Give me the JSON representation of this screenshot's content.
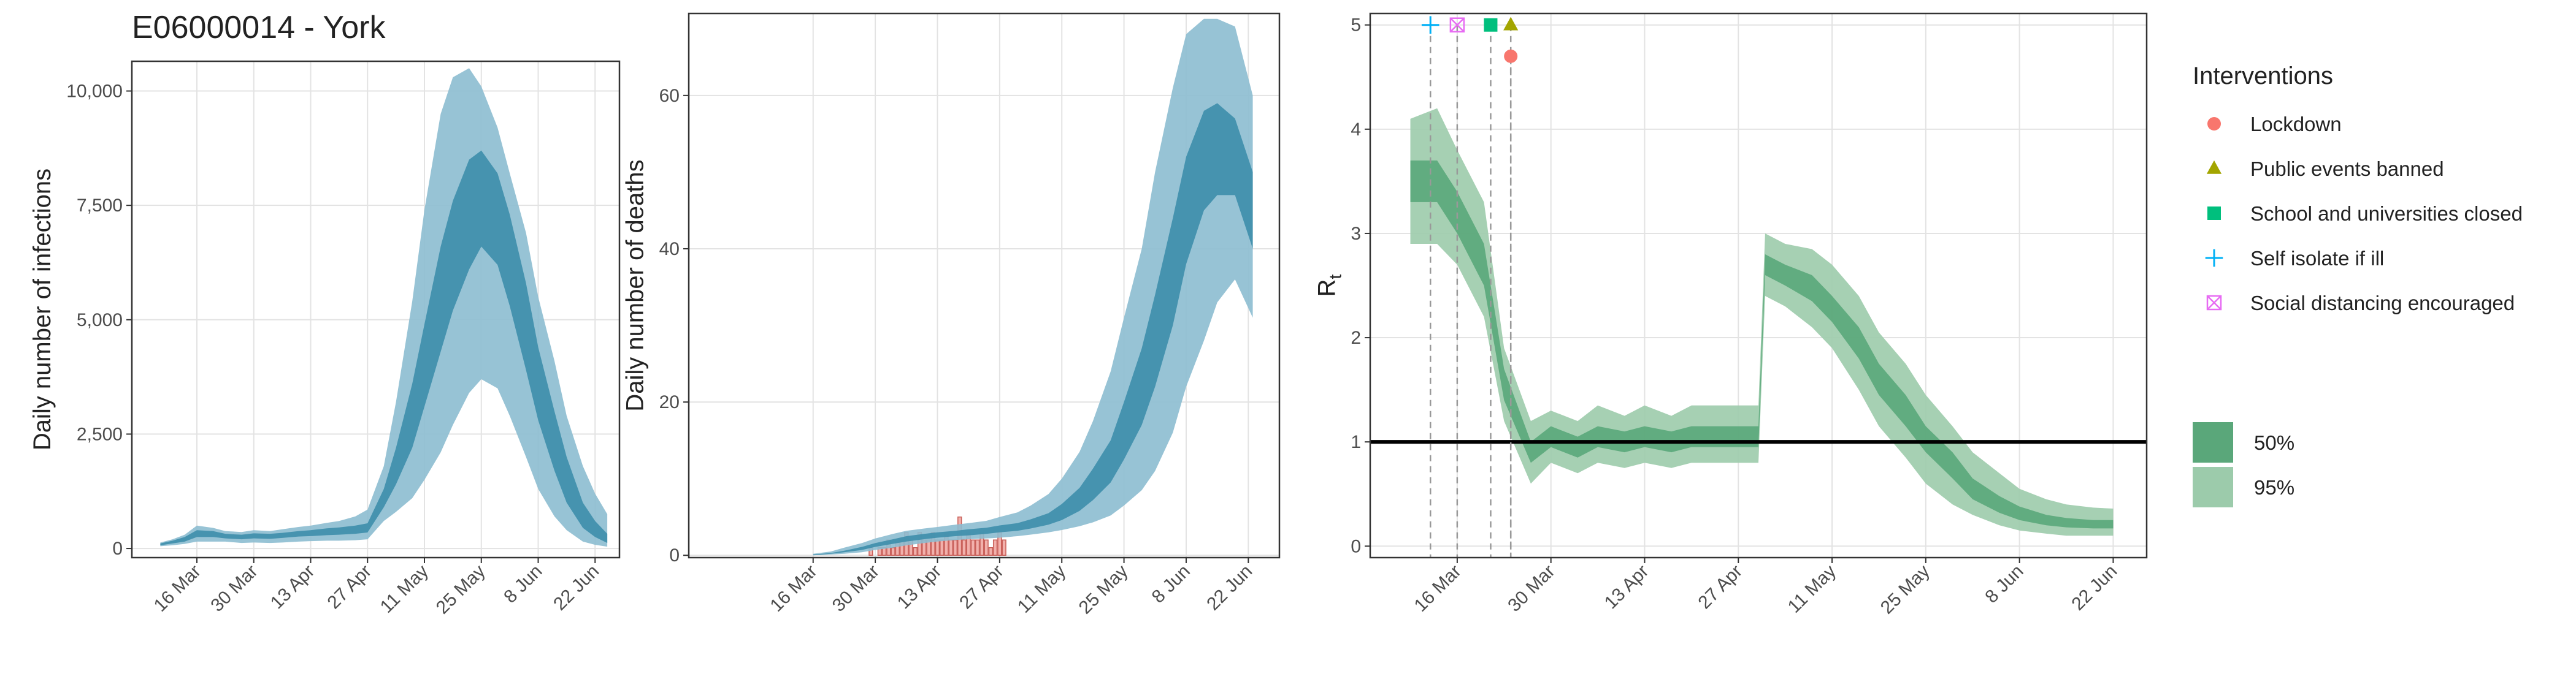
{
  "chart_data": [
    {
      "type": "area",
      "title": "E06000014 - York",
      "ylabel": "Daily number of infections",
      "grid": true,
      "x": [
        "7 Mar",
        "10 Mar",
        "13 Mar",
        "16 Mar",
        "20 Mar",
        "23 Mar",
        "27 Mar",
        "30 Mar",
        "3 Apr",
        "6 Apr",
        "10 Apr",
        "13 Apr",
        "17 Apr",
        "20 Apr",
        "24 Apr",
        "27 Apr",
        "1 May",
        "4 May",
        "8 May",
        "11 May",
        "15 May",
        "18 May",
        "22 May",
        "25 May",
        "29 May",
        "1 Jun",
        "5 Jun",
        "8 Jun",
        "12 Jun",
        "15 Jun",
        "19 Jun",
        "22 Jun",
        "25 Jun"
      ],
      "xlim": [
        "29 Feb",
        "28 Jun"
      ],
      "xticks": [
        "16 Mar",
        "30 Mar",
        "13 Apr",
        "27 Apr",
        "11 May",
        "25 May",
        "8 Jun",
        "22 Jun"
      ],
      "ylim": [
        -200,
        10650
      ],
      "yticks": [
        0,
        {
          "value": 2500,
          "label": "2,500"
        },
        {
          "value": 5000,
          "label": "5,000"
        },
        {
          "value": 7500,
          "label": "7,500"
        },
        {
          "value": 10000,
          "label": "10,000"
        }
      ],
      "series": [
        {
          "color": "#8cbdd0",
          "lower": [
            50,
            70,
            100,
            150,
            150,
            150,
            120,
            130,
            120,
            130,
            150,
            160,
            170,
            170,
            180,
            200,
            600,
            800,
            1100,
            1500,
            2100,
            2700,
            3400,
            3700,
            3500,
            2900,
            2000,
            1300,
            700,
            400,
            150,
            80,
            40
          ],
          "upper": [
            130,
            200,
            300,
            500,
            450,
            380,
            360,
            400,
            380,
            420,
            470,
            500,
            560,
            600,
            700,
            850,
            1800,
            3200,
            5400,
            7400,
            9500,
            10300,
            10500,
            10100,
            9200,
            8200,
            6900,
            5500,
            4100,
            2900,
            1800,
            1200,
            750
          ]
        },
        {
          "color": "#3d8eab",
          "lower": [
            70,
            110,
            150,
            250,
            250,
            220,
            200,
            220,
            210,
            230,
            260,
            270,
            290,
            300,
            320,
            350,
            900,
            1400,
            2200,
            3100,
            4300,
            5200,
            6100,
            6600,
            6200,
            5300,
            3900,
            2800,
            1700,
            1000,
            450,
            250,
            120
          ],
          "upper": [
            110,
            170,
            250,
            400,
            380,
            320,
            300,
            330,
            320,
            340,
            380,
            400,
            440,
            460,
            500,
            550,
            1300,
            2200,
            3600,
            4900,
            6600,
            7600,
            8500,
            8700,
            8200,
            7300,
            5800,
            4400,
            3000,
            2000,
            1000,
            600,
            320
          ]
        }
      ]
    },
    {
      "type": "area",
      "ylabel": "Daily number of deaths",
      "grid": true,
      "x": [
        "16 Mar",
        "20 Mar",
        "23 Mar",
        "27 Mar",
        "30 Mar",
        "3 Apr",
        "6 Apr",
        "10 Apr",
        "13 Apr",
        "17 Apr",
        "20 Apr",
        "24 Apr",
        "27 Apr",
        "1 May",
        "4 May",
        "8 May",
        "11 May",
        "15 May",
        "18 May",
        "22 May",
        "25 May",
        "29 May",
        "1 Jun",
        "5 Jun",
        "8 Jun",
        "12 Jun",
        "15 Jun",
        "19 Jun",
        "23 Jun"
      ],
      "xlim": [
        "17 Feb",
        "29 Jun"
      ],
      "xticks": [
        "16 Mar",
        "30 Mar",
        "13 Apr",
        "27 Apr",
        "11 May",
        "25 May",
        "8 Jun",
        "22 Jun"
      ],
      "ylim": [
        -0.3,
        70.7
      ],
      "yticks": [
        0,
        20,
        40,
        60
      ],
      "bars": {
        "color": "#f2b1ac",
        "edge": "#c9605a",
        "x": [
          "29 Mar",
          "30 Mar",
          "31 Mar",
          "1 Apr",
          "2 Apr",
          "3 Apr",
          "4 Apr",
          "5 Apr",
          "6 Apr",
          "7 Apr",
          "8 Apr",
          "9 Apr",
          "10 Apr",
          "11 Apr",
          "12 Apr",
          "13 Apr",
          "14 Apr",
          "15 Apr",
          "16 Apr",
          "17 Apr",
          "18 Apr",
          "19 Apr",
          "20 Apr",
          "21 Apr",
          "22 Apr",
          "23 Apr",
          "24 Apr",
          "25 Apr",
          "26 Apr",
          "27 Apr",
          "28 Apr"
        ],
        "values": [
          1,
          0,
          1,
          1,
          2,
          1,
          2,
          2,
          3,
          2,
          1,
          3,
          2,
          2,
          3,
          2,
          2,
          3,
          2,
          2,
          5,
          2,
          3,
          2,
          2,
          3,
          2,
          1,
          2,
          3,
          2
        ]
      },
      "series": [
        {
          "color": "#8cbdd0",
          "lower": [
            0,
            0.1,
            0.2,
            0.4,
            0.7,
            1.0,
            1.3,
            1.6,
            1.8,
            2.0,
            2.1,
            2.2,
            2.3,
            2.5,
            2.7,
            3.0,
            3.3,
            3.8,
            4.3,
            5.2,
            6.5,
            8.5,
            11,
            16,
            22,
            28,
            33,
            36,
            31
          ],
          "upper": [
            0.2,
            0.5,
            1,
            1.6,
            2.2,
            2.8,
            3.2,
            3.5,
            3.7,
            4.0,
            4.2,
            4.5,
            5.0,
            5.6,
            6.5,
            8,
            10,
            13.5,
            17.5,
            24,
            31,
            40,
            50,
            61,
            68,
            70,
            70,
            69,
            60
          ]
        },
        {
          "color": "#3d8eab",
          "lower": [
            0,
            0.2,
            0.4,
            0.7,
            1.1,
            1.5,
            1.8,
            2.1,
            2.3,
            2.5,
            2.6,
            2.8,
            3.0,
            3.2,
            3.5,
            4.0,
            4.6,
            5.8,
            7.2,
            9.5,
            12.5,
            17,
            22,
            30,
            38,
            45,
            47,
            47,
            40
          ],
          "upper": [
            0.1,
            0.3,
            0.6,
            1.1,
            1.6,
            2.1,
            2.5,
            2.8,
            3.0,
            3.2,
            3.4,
            3.6,
            3.9,
            4.2,
            4.7,
            5.5,
            6.7,
            8.8,
            11.3,
            15,
            20,
            27,
            34,
            44,
            52,
            58,
            59,
            57,
            50
          ]
        }
      ]
    },
    {
      "type": "area",
      "ylabel": "R",
      "ylabel_subscript": "t",
      "grid": true,
      "reference_line": 1,
      "x": [
        "9 Mar",
        "13 Mar",
        "16 Mar",
        "20 Mar",
        "23 Mar",
        "27 Mar",
        "30 Mar",
        "3 Apr",
        "6 Apr",
        "10 Apr",
        "13 Apr",
        "17 Apr",
        "20 Apr",
        "24 Apr",
        "27 Apr",
        "30 Apr",
        "1 May",
        "4 May",
        "8 May",
        "11 May",
        "15 May",
        "18 May",
        "22 May",
        "25 May",
        "29 May",
        "1 Jun",
        "5 Jun",
        "8 Jun",
        "12 Jun",
        "15 Jun",
        "19 Jun",
        "22 Jun"
      ],
      "xlim": [
        "3 Mar",
        "27 Jun"
      ],
      "xticks": [
        "16 Mar",
        "30 Mar",
        "13 Apr",
        "27 Apr",
        "11 May",
        "25 May",
        "8 Jun",
        "22 Jun"
      ],
      "ylim": [
        -0.11,
        5.11
      ],
      "yticks": [
        0,
        1,
        2,
        3,
        4,
        5
      ],
      "series": [
        {
          "name": "95%",
          "color": "#9ccbab",
          "lower": [
            2.9,
            2.9,
            2.7,
            2.2,
            1.2,
            0.6,
            0.8,
            0.7,
            0.8,
            0.75,
            0.8,
            0.75,
            0.8,
            0.8,
            0.8,
            0.8,
            2.4,
            2.3,
            2.1,
            1.9,
            1.5,
            1.15,
            0.85,
            0.6,
            0.4,
            0.3,
            0.2,
            0.15,
            0.12,
            0.1,
            0.1,
            0.1
          ],
          "upper": [
            4.1,
            4.2,
            3.8,
            3.3,
            1.9,
            1.2,
            1.3,
            1.2,
            1.35,
            1.25,
            1.35,
            1.25,
            1.35,
            1.35,
            1.35,
            1.35,
            3.0,
            2.9,
            2.85,
            2.7,
            2.4,
            2.05,
            1.75,
            1.45,
            1.15,
            0.9,
            0.7,
            0.55,
            0.45,
            0.4,
            0.37,
            0.36
          ]
        },
        {
          "name": "50%",
          "color": "#5aa77a",
          "lower": [
            3.3,
            3.3,
            3.0,
            2.5,
            1.4,
            0.8,
            0.95,
            0.85,
            0.95,
            0.9,
            0.95,
            0.9,
            0.95,
            0.95,
            0.95,
            0.95,
            2.6,
            2.5,
            2.35,
            2.15,
            1.8,
            1.45,
            1.15,
            0.9,
            0.65,
            0.45,
            0.32,
            0.25,
            0.2,
            0.18,
            0.17,
            0.17
          ],
          "upper": [
            3.7,
            3.7,
            3.4,
            2.9,
            1.7,
            1.0,
            1.15,
            1.05,
            1.15,
            1.1,
            1.15,
            1.1,
            1.15,
            1.15,
            1.15,
            1.15,
            2.8,
            2.7,
            2.6,
            2.4,
            2.1,
            1.75,
            1.45,
            1.15,
            0.9,
            0.65,
            0.48,
            0.38,
            0.3,
            0.27,
            0.25,
            0.25
          ]
        }
      ],
      "legend_title": "Interventions",
      "interventions": [
        {
          "name": "Lockdown",
          "date": "24 Mar",
          "y": 4.7,
          "color": "#F8766D",
          "shape": "circle"
        },
        {
          "name": "Public events banned",
          "date": "24 Mar",
          "y": 5,
          "color": "#A3A500",
          "shape": "triangle"
        },
        {
          "name": "School and universities closed",
          "date": "21 Mar",
          "y": 5,
          "color": "#00BF7D",
          "shape": "square"
        },
        {
          "name": "Self isolate if ill",
          "date": "12 Mar",
          "y": 5,
          "color": "#00B0F6",
          "shape": "plus"
        },
        {
          "name": "Social distancing encouraged",
          "date": "16 Mar",
          "y": 5,
          "color": "#E76BF3",
          "shape": "boxcross"
        }
      ]
    }
  ]
}
